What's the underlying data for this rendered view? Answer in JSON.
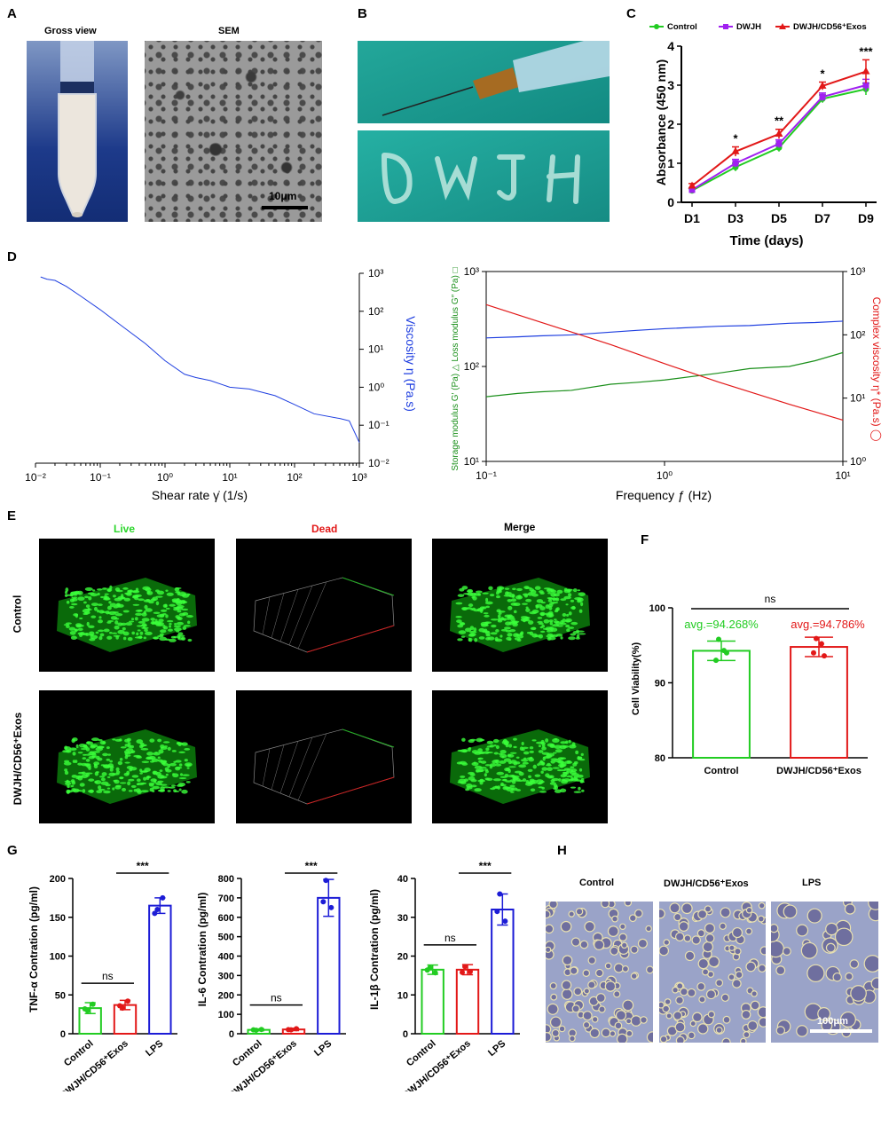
{
  "panels": {
    "A": "A",
    "B": "B",
    "C": "C",
    "D": "D",
    "E": "E",
    "F": "F",
    "G": "G",
    "H": "H"
  },
  "panelA": {
    "gross_label": "Gross view",
    "sem_label": "SEM",
    "scale": "10μm"
  },
  "colors": {
    "control": "#22cc22",
    "dwjh": "#a020f0",
    "exos": "#e21818",
    "lps": "#1c1cd6",
    "blue": "#1f3fe0",
    "green": "#1a8f1a",
    "red": "#e21818"
  },
  "chart_data": [
    {
      "id": "C",
      "type": "line",
      "x": [
        "D1",
        "D3",
        "D5",
        "D7",
        "D9"
      ],
      "xlabel": "Time (days)",
      "ylabel": "Absorbance (450 nm)",
      "ylim": [
        0,
        4
      ],
      "yticks": [
        0,
        1,
        2,
        3,
        4
      ],
      "series": [
        {
          "name": "Control",
          "values": [
            0.3,
            0.9,
            1.4,
            2.65,
            2.9
          ],
          "err": [
            0.05,
            0.1,
            0.1,
            0.1,
            0.15
          ]
        },
        {
          "name": "DWJH",
          "values": [
            0.32,
            1.0,
            1.5,
            2.7,
            3.0
          ],
          "err": [
            0.05,
            0.1,
            0.1,
            0.1,
            0.15
          ]
        },
        {
          "name": "DWJH/CD56⁺Exos",
          "values": [
            0.42,
            1.3,
            1.75,
            2.98,
            3.35
          ],
          "err": [
            0.06,
            0.12,
            0.12,
            0.1,
            0.3
          ]
        }
      ],
      "annotations": [
        "",
        "*",
        "**",
        "*",
        "***"
      ]
    },
    {
      "id": "D1",
      "type": "line",
      "xscale": "log",
      "yscale": "log",
      "xlabel": "Shear rate γ̇ (1/s)",
      "ylabel": "Viscosity η (Pa.s)",
      "xlim": [
        0.01,
        1000
      ],
      "ylim": [
        0.01,
        1000
      ],
      "xticks": [
        "10⁻²",
        "10⁻¹",
        "10⁰",
        "10¹",
        "10²",
        "10³"
      ],
      "yticks": [
        "10⁻²",
        "10⁻¹",
        "10⁰",
        "10¹",
        "10²",
        "10³"
      ],
      "series": [
        {
          "name": "Viscosity",
          "x": [
            0.012,
            0.015,
            0.02,
            0.03,
            0.05,
            0.1,
            0.2,
            0.5,
            1,
            2,
            3,
            5,
            10,
            20,
            50,
            100,
            200,
            500,
            700,
            1000
          ],
          "y": [
            800,
            700,
            650,
            450,
            250,
            110,
            45,
            14,
            5,
            2.2,
            1.8,
            1.5,
            1.0,
            0.9,
            0.6,
            0.35,
            0.2,
            0.15,
            0.13,
            0.035
          ]
        }
      ]
    },
    {
      "id": "D2",
      "type": "line",
      "xscale": "log",
      "yscale": "log",
      "xlabel": "Frequency ƒ (Hz)",
      "ylabel_left": "Storage modulus G′ (Pa) △   Loss modulus G″ (Pa) □",
      "ylabel_right": "Complex viscosity η* (Pa.s) ◯",
      "xlim": [
        0.1,
        10
      ],
      "ylim_left": [
        10,
        1000
      ],
      "ylim_right": [
        1,
        1000
      ],
      "xticks": [
        "10⁻¹",
        "10⁰",
        "10¹"
      ],
      "yticks_left": [
        "10¹",
        "10²",
        "10³"
      ],
      "yticks_right": [
        "10⁰",
        "10¹",
        "10²",
        "10³"
      ],
      "series": [
        {
          "name": "G′",
          "axis": "left",
          "x": [
            0.1,
            0.15,
            0.2,
            0.3,
            0.5,
            0.7,
            1,
            2,
            3,
            5,
            7,
            10
          ],
          "y": [
            200,
            205,
            210,
            215,
            230,
            240,
            250,
            265,
            270,
            285,
            290,
            300
          ]
        },
        {
          "name": "G″",
          "axis": "left",
          "x": [
            0.1,
            0.15,
            0.2,
            0.3,
            0.5,
            0.7,
            1,
            2,
            3,
            5,
            7,
            10
          ],
          "y": [
            48,
            52,
            54,
            56,
            65,
            68,
            72,
            85,
            95,
            100,
            115,
            140
          ]
        },
        {
          "name": "η*",
          "axis": "right",
          "x": [
            0.1,
            0.2,
            0.5,
            1,
            2,
            5,
            10
          ],
          "y": [
            300,
            160,
            70,
            35,
            18,
            8,
            4.5
          ]
        }
      ]
    },
    {
      "id": "F",
      "type": "bar",
      "categories": [
        "Control",
        "DWJH/CD56⁺Exos"
      ],
      "values": [
        94.268,
        94.786
      ],
      "err": [
        1.3,
        1.3
      ],
      "points": [
        [
          95.8,
          94.3,
          93.0,
          94.0
        ],
        [
          95.9,
          95.2,
          94.0,
          93.6
        ]
      ],
      "ylabel": "Cell Viability(%)",
      "ylim": [
        80,
        100
      ],
      "yticks": [
        80,
        90,
        100
      ],
      "value_labels": [
        "avg.=94.268%",
        "avg.=94.786%"
      ],
      "sig": "ns"
    },
    {
      "id": "G1",
      "type": "bar",
      "categories": [
        "Control",
        "DWJH/CD56⁺Exos",
        "LPS"
      ],
      "values": [
        33,
        37,
        165
      ],
      "err": [
        7,
        6,
        10
      ],
      "points": [
        [
          30,
          38,
          32
        ],
        [
          33,
          42,
          36
        ],
        [
          160,
          175,
          155
        ]
      ],
      "ylabel": "TNF-α Contration (pg/ml)",
      "ylim": [
        0,
        200
      ],
      "yticks": [
        0,
        50,
        100,
        150,
        200
      ],
      "sig": [
        {
          "between": [
            0,
            1
          ],
          "label": "ns"
        },
        {
          "between": [
            1,
            2
          ],
          "label": "***"
        }
      ]
    },
    {
      "id": "G2",
      "type": "bar",
      "categories": [
        "Control",
        "DWJH/CD56⁺Exos",
        "LPS"
      ],
      "values": [
        20,
        22,
        700
      ],
      "err": [
        5,
        6,
        95
      ],
      "points": [
        [
          18,
          22,
          20
        ],
        [
          20,
          26,
          21
        ],
        [
          790,
          650,
          680
        ]
      ],
      "ylabel": "IL-6 Contration (pg/ml)",
      "ylim": [
        0,
        800
      ],
      "yticks": [
        0,
        100,
        200,
        300,
        400,
        500,
        600,
        700,
        800
      ],
      "sig": [
        {
          "between": [
            0,
            1
          ],
          "label": "ns"
        },
        {
          "between": [
            1,
            2
          ],
          "label": "***"
        }
      ]
    },
    {
      "id": "G3",
      "type": "bar",
      "categories": [
        "Control",
        "DWJH/CD56⁺Exos",
        "LPS"
      ],
      "values": [
        16.5,
        16.5,
        32
      ],
      "err": [
        1.2,
        1.3,
        4
      ],
      "points": [
        [
          17,
          15.7,
          16.4
        ],
        [
          17.3,
          16,
          15.8
        ],
        [
          36,
          29,
          31.5
        ]
      ],
      "ylabel": "IL-1β Contration (pg/ml)",
      "ylim": [
        0,
        40
      ],
      "yticks": [
        0,
        10,
        20,
        30,
        40
      ],
      "sig": [
        {
          "between": [
            0,
            1
          ],
          "label": "ns"
        },
        {
          "between": [
            1,
            2
          ],
          "label": "***"
        }
      ]
    }
  ],
  "panelE": {
    "col_live": "Live",
    "col_dead": "Dead",
    "col_merge": "Merge",
    "row_control": "Control",
    "row_exos": "DWJH/CD56⁺Exos"
  },
  "panelH": {
    "col1": "Control",
    "col2": "DWJH/CD56⁺Exos",
    "col3": "LPS",
    "scale": "100μm"
  }
}
